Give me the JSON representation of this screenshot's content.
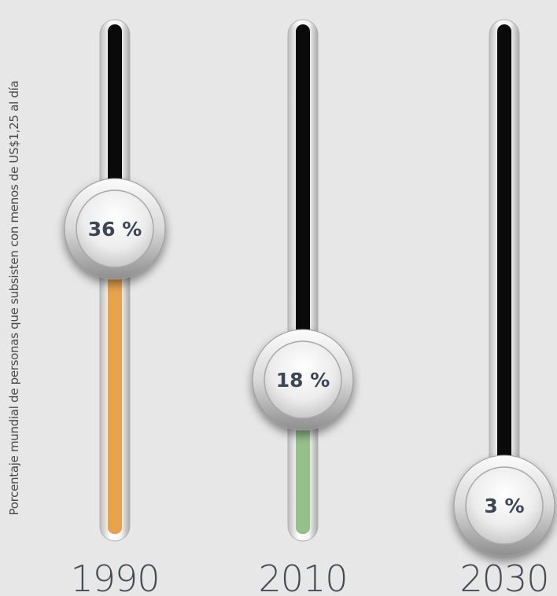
{
  "chart_data": {
    "type": "bar",
    "ylabel": "Porcentaje mundial de personas que subsisten con menos de US$1,25 al día",
    "categories": [
      "1990",
      "2010",
      "2030"
    ],
    "values": [
      36,
      18,
      3
    ],
    "value_labels": [
      "36 %",
      "18 %",
      "3 %"
    ],
    "ylim": [
      0,
      60
    ],
    "grid": false,
    "colors": [
      "#e8a34a",
      "#95c08a",
      "#4a7287"
    ],
    "track_color": "#0a0a0a"
  }
}
